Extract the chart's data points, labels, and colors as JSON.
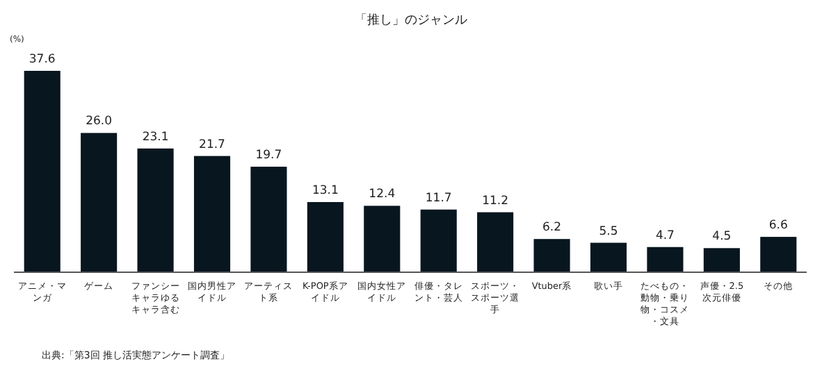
{
  "chart_data": {
    "type": "bar",
    "title": "「推し」のジャンル",
    "ylabel": "(%)",
    "categories": [
      "アニメ・マンガ",
      "ゲーム",
      "ファンシーキャラゆるキャラ含む",
      "国内男性アイドル",
      "アーティスト系",
      "K-POP系アイドル",
      "国内女性アイドル",
      "俳優・タレント・芸人",
      "スポーツ・スポーツ選手",
      "Vtuber系",
      "歌い手",
      "たべもの・動物・乗り物・コスメ・文具",
      "声優・2.5次元俳優",
      "その他"
    ],
    "values": [
      37.6,
      26.0,
      23.1,
      21.7,
      19.7,
      13.1,
      12.4,
      11.7,
      11.2,
      6.2,
      5.5,
      4.7,
      4.5,
      6.6
    ],
    "value_labels": [
      "37.6",
      "26.0",
      "23.1",
      "21.7",
      "19.7",
      "13.1",
      "12.4",
      "11.7",
      "11.2",
      "6.2",
      "5.5",
      "4.7",
      "4.5",
      "6.6"
    ],
    "color": "#08161f",
    "annotations": [
      "出典:「第3回 推し活実態アンケート調査」"
    ]
  }
}
